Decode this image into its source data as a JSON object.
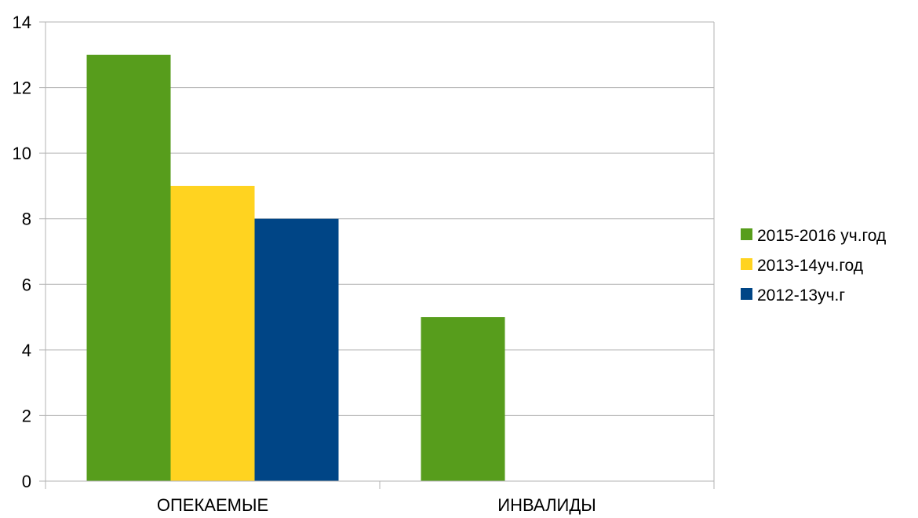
{
  "chart_data": {
    "type": "bar",
    "title": "",
    "xlabel": "",
    "ylabel": "",
    "categories": [
      "ОПЕКАЕМЫЕ",
      "ИНВАЛИДЫ"
    ],
    "series": [
      {
        "name": "2015-2016 уч.год",
        "values": [
          13,
          5
        ],
        "color": "#579d1c"
      },
      {
        "name": "2013-14уч.год",
        "values": [
          9,
          0
        ],
        "color": "#ffd320"
      },
      {
        "name": "2012-13уч.г",
        "values": [
          8,
          0
        ],
        "color": "#004586"
      }
    ],
    "ylim": [
      0,
      14
    ],
    "yticks": [
      0,
      2,
      4,
      6,
      8,
      10,
      12,
      14
    ],
    "grid": true,
    "legend_position": "right"
  }
}
